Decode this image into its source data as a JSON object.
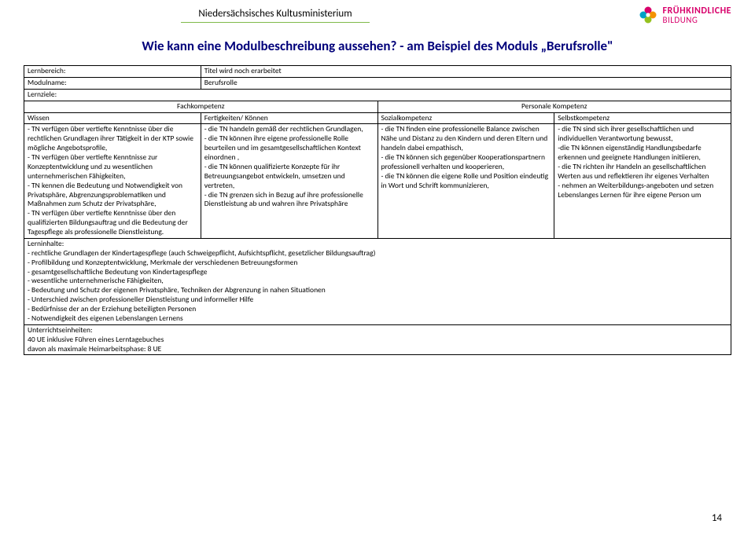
{
  "header": {
    "ministry": "Niedersächsisches Kultusministerium",
    "logo_line1": "FRÜHKINDLICHE",
    "logo_line2": "BILDUNG",
    "logo_colors": [
      "#d8006b",
      "#f39200",
      "#95c11f",
      "#00a0c6"
    ]
  },
  "title": "Wie kann eine Modulbeschreibung aussehen? - am Beispiel des Moduls „Berufsrolle\"",
  "meta": {
    "lernbereich_label": "Lernbereich:",
    "lernbereich_value": "Titel wird noch erarbeitet",
    "modulname_label": "Modulname:",
    "modulname_value": "Berufsrolle",
    "lernziele_label": "Lernziele:"
  },
  "fk_header": {
    "fachkompetenz": "Fachkompetenz",
    "personale": "Personale Kompetenz"
  },
  "sub_header": {
    "wissen": "Wissen",
    "fertigkeiten": "Fertigkeiten/ Können",
    "sozial": "Sozialkompetenz",
    "selbst": "Selbstkompetenz"
  },
  "cells": {
    "wissen": "- TN verfügen über vertiefte Kenntnisse über die rechtlichen Grundlagen ihrer Tätigkeit in der KTP sowie mögliche Angebotsprofile,\n- TN verfügen über vertiefte Kenntnisse zur Konzeptentwicklung und zu wesentlichen unternehmerischen Fähigkeiten,\n- TN kennen die Bedeutung und Notwendigkeit von Privatsphäre, Abgrenzungsproblematiken und Maßnahmen zum Schutz der Privatsphäre,\n- TN verfügen über vertiefte Kenntnisse über den qualifizierten Bildungsauftrag und die Bedeutung der Tagespflege als professionelle Dienstleistung.",
    "fertigkeiten": "- die TN handeln gemäß der rechtlichen Grundlagen,\n- die TN können ihre eigene professionelle Rolle beurteilen und im gesamtgesellschaftlichen Kontext einordnen ,\n- die TN können qualifizierte Konzepte für ihr Betreuungsangebot entwickeln, umsetzen und vertreten,\n- die TN grenzen sich in Bezug auf ihre professionelle Dienstleistung ab und wahren ihre Privatsphäre",
    "sozial": "- die TN finden eine professionelle Balance zwischen Nähe und Distanz zu den Kindern und deren Eltern und handeln dabei empathisch,\n- die TN können sich gegenüber Kooperationspartnern professionell verhalten und kooperieren,\n- die TN können die eigene Rolle und Position eindeutig in Wort und Schrift kommunizieren,",
    "selbst": "- die TN sind sich ihrer gesellschaftlichen und individuellen Verantwortung bewusst,\n-die TN können eigenständig Handlungsbedarfe erkennen und geeignete Handlungen initiieren,\n- die TN richten ihr Handeln an gesellschaftlichen Werten aus und reflektieren ihr eigenes Verhalten\n- nehmen an Weiterbildungs-angeboten und setzen Lebenslanges Lernen für ihre eigene Person um"
  },
  "lerninhalte": {
    "label": "Lerninhalte:",
    "text": "- rechtliche Grundlagen der Kindertagespflege (auch Schweigepflicht,  Aufsichtspflicht, gesetzlicher Bildungsauftrag)\n- Profilbildung und Konzeptentwicklung, Merkmale der verschiedenen Betreuungsformen\n- gesamtgesellschaftliche Bedeutung von Kindertagespflege\n- wesentliche unternehmerische Fähigkeiten,\n- Bedeutung und Schutz der eigenen Privatsphäre, Techniken der Abgrenzung in nahen Situationen\n- Unterschied zwischen professioneller Dienstleistung und informeller Hilfe\n- Bedürfnisse der an der Erziehung beteiligten Personen\n- Notwendigkeit des eigenen Lebenslangen Lernens"
  },
  "ue": {
    "label": "Unterrichtseinheiten:",
    "text": "40 UE inklusive Führen eines Lerntagebuches\ndavon als maximale Heimarbeitsphase: 8 UE"
  },
  "page_number": "14"
}
